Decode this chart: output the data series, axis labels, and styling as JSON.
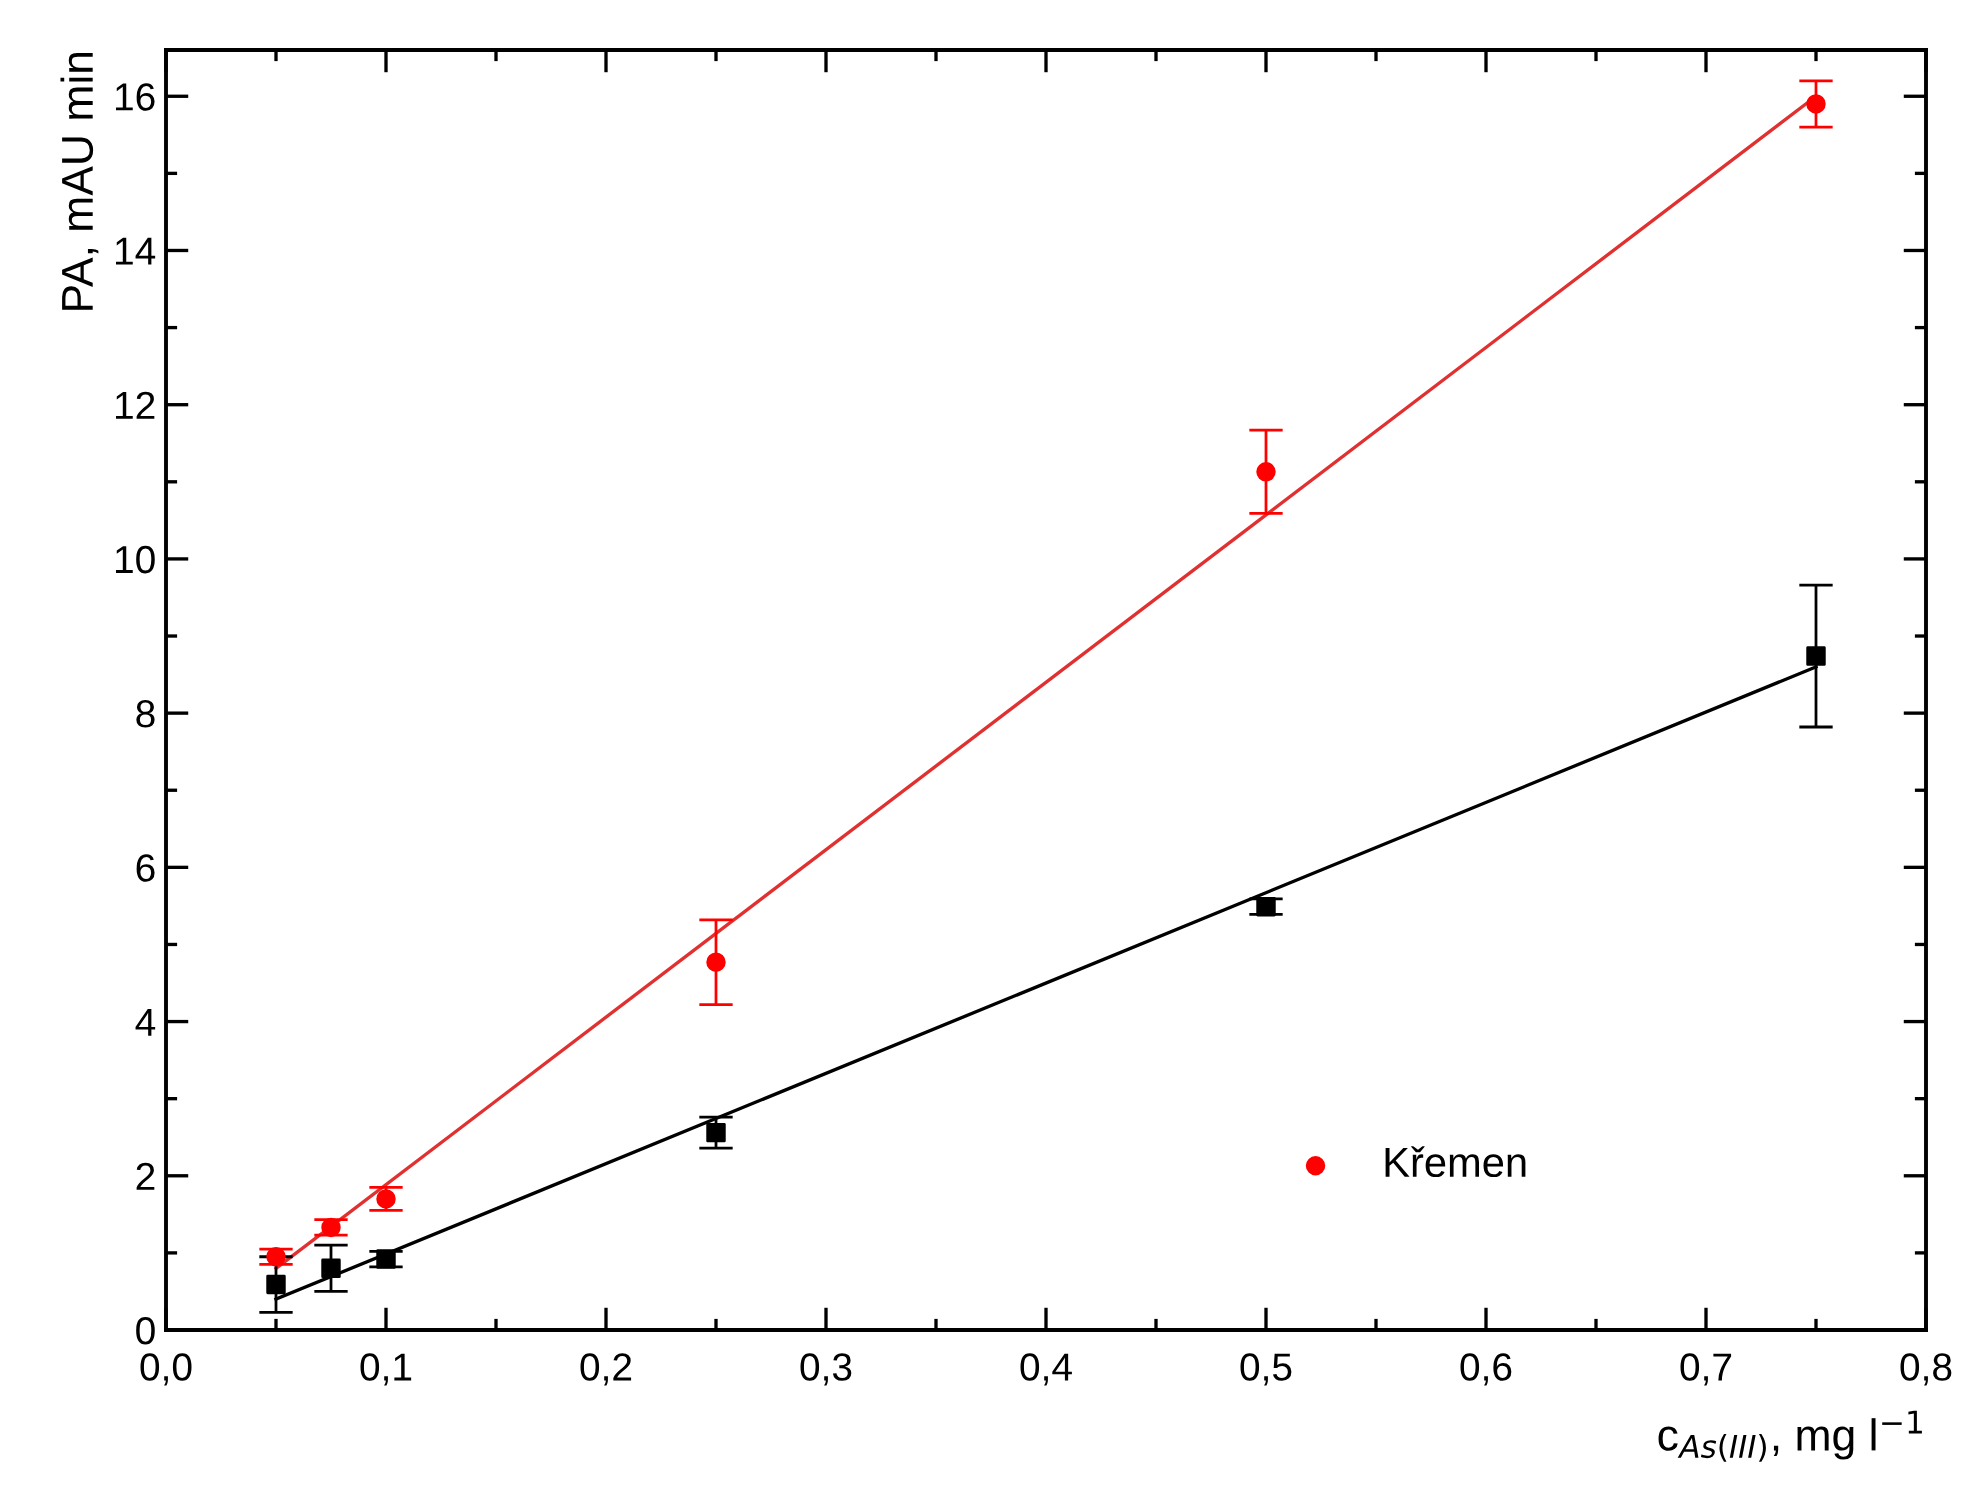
{
  "chart_data": {
    "type": "scatter",
    "xlabel": "c$_{As(III)}$, mg l$^{−1}$",
    "ylabel": "PA, mAU min",
    "xlim": [
      0.0,
      0.8
    ],
    "ylim": [
      0,
      16.6
    ],
    "xticks": [
      {
        "value": 0.0,
        "label": "0,0"
      },
      {
        "value": 0.05,
        "label": null
      },
      {
        "value": 0.1,
        "label": "0,1"
      },
      {
        "value": 0.15,
        "label": null
      },
      {
        "value": 0.2,
        "label": "0,2"
      },
      {
        "value": 0.25,
        "label": null
      },
      {
        "value": 0.3,
        "label": "0,3"
      },
      {
        "value": 0.35,
        "label": null
      },
      {
        "value": 0.4,
        "label": "0,4"
      },
      {
        "value": 0.45,
        "label": null
      },
      {
        "value": 0.5,
        "label": "0,5"
      },
      {
        "value": 0.55,
        "label": null
      },
      {
        "value": 0.6,
        "label": "0,6"
      },
      {
        "value": 0.65,
        "label": null
      },
      {
        "value": 0.7,
        "label": "0,7"
      },
      {
        "value": 0.75,
        "label": null
      },
      {
        "value": 0.8,
        "label": "0,8"
      }
    ],
    "yticks": [
      0,
      {
        "value": 1,
        "label": null
      },
      2,
      {
        "value": 3,
        "label": null
      },
      4,
      {
        "value": 5,
        "label": null
      },
      6,
      {
        "value": 7,
        "label": null
      },
      8,
      {
        "value": 9,
        "label": null
      },
      10,
      {
        "value": 11,
        "label": null
      },
      12,
      {
        "value": 13,
        "label": null
      },
      14,
      {
        "value": 15,
        "label": null
      },
      16
    ],
    "grid": false,
    "legend": "bottom right",
    "series": [
      {
        "color": "#000000",
        "marker": "square",
        "x": [
          0.05,
          0.075,
          0.1,
          0.25,
          0.5,
          0.75
        ],
        "values": [
          0.59,
          0.8,
          0.92,
          2.56,
          5.49,
          8.74
        ],
        "errors": [
          0.36,
          0.3,
          0.1,
          0.2,
          0.1,
          0.92
        ]
      },
      {
        "name": "Křemen",
        "color": "#ff0000",
        "marker": "circle",
        "x": [
          0.05,
          0.075,
          0.1,
          0.25,
          0.5,
          0.75
        ],
        "values": [
          0.95,
          1.33,
          1.7,
          4.77,
          11.13,
          15.9
        ],
        "errors": [
          0.1,
          0.1,
          0.15,
          0.55,
          0.54,
          0.3
        ]
      },
      {
        "type": "line",
        "color": "#000000",
        "marker": "none",
        "x": [
          0.05,
          0.75
        ],
        "values": [
          0.4,
          8.6
        ]
      },
      {
        "type": "line",
        "color": "#e03030",
        "marker": "none",
        "x": [
          0.05,
          0.75
        ],
        "values": [
          0.8,
          16.0
        ]
      }
    ]
  }
}
